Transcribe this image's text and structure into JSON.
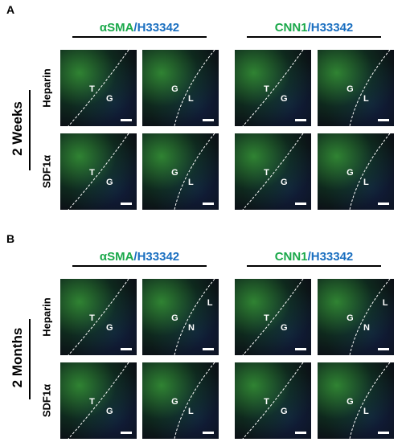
{
  "panels": [
    {
      "label": "A",
      "group": "2 Weeks",
      "headers": [
        {
          "green": "αSMA",
          "blue": "/H33342"
        },
        {
          "green": "CNN1",
          "blue": "/H33342"
        }
      ],
      "rows": [
        {
          "label": "Heparin",
          "images": [
            [
              "T",
              "G"
            ],
            [
              "G",
              "L"
            ],
            [
              "T",
              "G"
            ],
            [
              "G",
              "L"
            ]
          ]
        },
        {
          "label": "SDF1α",
          "images": [
            [
              "T",
              "G"
            ],
            [
              "G",
              "L"
            ],
            [
              "T",
              "G"
            ],
            [
              "G",
              "L"
            ]
          ]
        }
      ]
    },
    {
      "label": "B",
      "group": "2 Months",
      "headers": [
        {
          "green": "αSMA",
          "blue": "/H33342"
        },
        {
          "green": "CNN1",
          "blue": "/H33342"
        }
      ],
      "rows": [
        {
          "label": "Heparin",
          "images": [
            [
              "T",
              "G"
            ],
            [
              "G",
              "N",
              "L"
            ],
            [
              "T",
              "G"
            ],
            [
              "G",
              "N",
              "L"
            ]
          ]
        },
        {
          "label": "SDF1α",
          "images": [
            [
              "T",
              "G"
            ],
            [
              "G",
              "L"
            ],
            [
              "T",
              "G"
            ],
            [
              "G",
              "L"
            ]
          ]
        }
      ]
    }
  ]
}
